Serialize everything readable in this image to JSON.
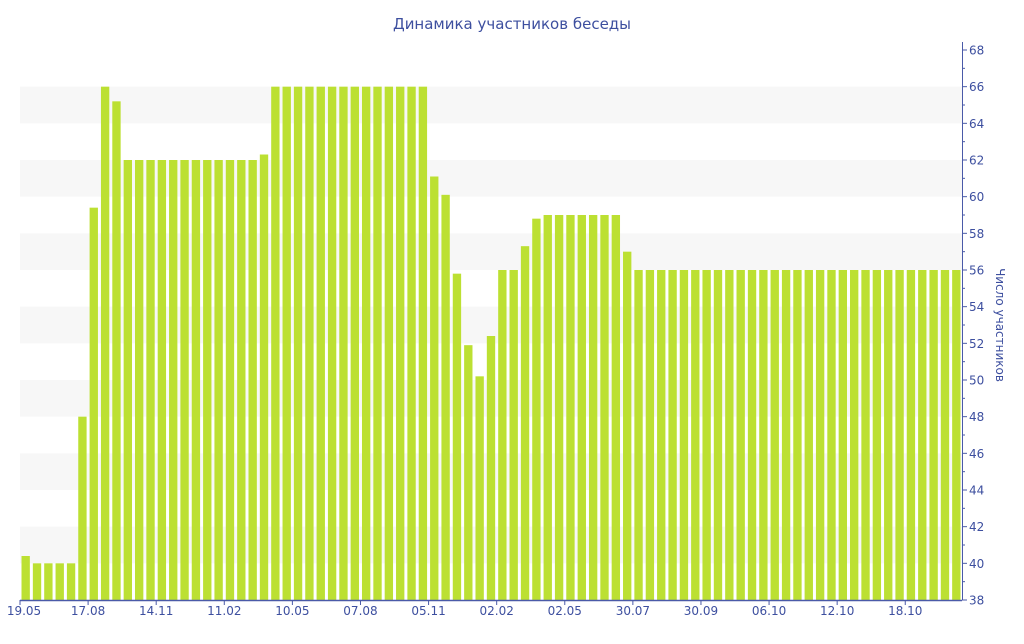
{
  "chart_data": {
    "type": "bar",
    "title": "Динамика участников беседы",
    "xlabel": "",
    "ylabel": "Число участников",
    "ylim": [
      38,
      68
    ],
    "y_ticks": [
      38,
      40,
      42,
      44,
      46,
      48,
      50,
      52,
      54,
      56,
      58,
      60,
      62,
      64,
      66,
      68
    ],
    "y_axis_side": "right",
    "grid": "alternating horizontal bands",
    "x_tick_labels": [
      "19.05",
      "17.08",
      "14.11",
      "11.02",
      "10.05",
      "07.08",
      "05.11",
      "02.02",
      "02.05",
      "30.07",
      "30.09",
      "06.10",
      "12.10",
      "18.10"
    ],
    "x_tick_every_n_bars": 6,
    "values": [
      40.4,
      40,
      40,
      40,
      40,
      48,
      59.4,
      66,
      65.2,
      62,
      62,
      62,
      62,
      62,
      62,
      62,
      62,
      62,
      62,
      62,
      62,
      62.3,
      66,
      66,
      66,
      66,
      66,
      66,
      66,
      66,
      66,
      66,
      66,
      66,
      66,
      66,
      61.1,
      60.1,
      55.8,
      51.9,
      50.2,
      52.4,
      56,
      56,
      57.3,
      58.8,
      59,
      59,
      59,
      59,
      59,
      59,
      59,
      57,
      56,
      56,
      56,
      56,
      56,
      56,
      56,
      56,
      56,
      56,
      56,
      56,
      56,
      56,
      56,
      56,
      56,
      56,
      56,
      56,
      56,
      56,
      56,
      56,
      56,
      56,
      56,
      56,
      56
    ],
    "colors": {
      "bar": "#bce032",
      "axis": "#4a5aa8",
      "text": "#3d4f9f",
      "band": "#f7f7f7"
    }
  }
}
